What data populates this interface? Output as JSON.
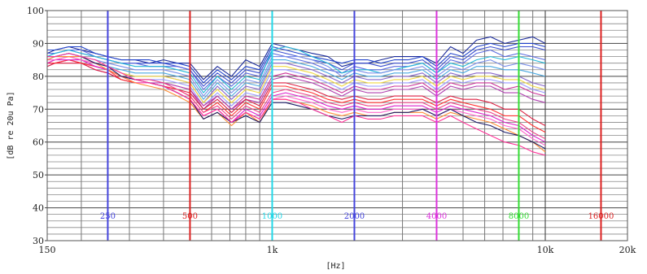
{
  "chart_data": {
    "type": "line",
    "title": "",
    "xlabel": "[Hz]",
    "ylabel": "[dB re 20u Pa]",
    "x_scale": "log",
    "xlim": [
      150,
      20000
    ],
    "ylim": [
      30,
      100
    ],
    "grid": true,
    "x_tick_labels": [
      {
        "value": 150,
        "label": "150"
      },
      {
        "value": 1000,
        "label": "1k"
      },
      {
        "value": 10000,
        "label": "10k"
      },
      {
        "value": 20000,
        "label": "20k"
      }
    ],
    "y_ticks": [
      30,
      40,
      50,
      60,
      70,
      80,
      90,
      100
    ],
    "markers": [
      {
        "freq": 250,
        "label": "250",
        "color": "#4444dd"
      },
      {
        "freq": 500,
        "label": "500",
        "color": "#dd2222"
      },
      {
        "freq": 1000,
        "label": "1000",
        "color": "#22d8e8"
      },
      {
        "freq": 2000,
        "label": "2000",
        "color": "#4444dd"
      },
      {
        "freq": 4000,
        "label": "4000",
        "color": "#dd33dd"
      },
      {
        "freq": 8000,
        "label": "8000",
        "color": "#33dd33"
      },
      {
        "freq": 16000,
        "label": "16000",
        "color": "#dd2222"
      }
    ],
    "x": [
      150,
      160,
      180,
      200,
      225,
      250,
      280,
      315,
      355,
      400,
      450,
      500,
      560,
      630,
      710,
      800,
      900,
      1000,
      1120,
      1250,
      1400,
      1600,
      1800,
      2000,
      2240,
      2500,
      2800,
      3150,
      3550,
      4000,
      4500,
      5000,
      5600,
      6300,
      7100,
      8000,
      9000,
      10000
    ],
    "series": [
      {
        "color": "#1a2a9a",
        "values": [
          87,
          88,
          89,
          88,
          87,
          86,
          85,
          85,
          84,
          85,
          84,
          84,
          79,
          83,
          80,
          85,
          83,
          90,
          89,
          88,
          87,
          86,
          83,
          84,
          84,
          85,
          86,
          86,
          86,
          84,
          89,
          87,
          91,
          92,
          90,
          91,
          92,
          90
        ]
      },
      {
        "color": "#2244cc",
        "values": [
          88,
          88,
          89,
          89,
          87,
          86,
          85,
          85,
          85,
          84,
          84,
          83,
          78,
          82,
          79,
          83,
          82,
          89,
          88,
          87,
          86,
          85,
          84,
          85,
          85,
          84,
          85,
          85,
          86,
          83,
          87,
          86,
          89,
          90,
          89,
          90,
          90,
          89
        ]
      },
      {
        "color": "#3a4fd0",
        "values": [
          86,
          87,
          88,
          87,
          86,
          85,
          84,
          84,
          84,
          84,
          83,
          82,
          77,
          81,
          78,
          82,
          81,
          88,
          87,
          86,
          85,
          84,
          82,
          84,
          84,
          83,
          84,
          84,
          85,
          82,
          86,
          85,
          88,
          89,
          88,
          89,
          89,
          88
        ]
      },
      {
        "color": "#5b6be0",
        "values": [
          87,
          87,
          88,
          88,
          86,
          85,
          84,
          84,
          83,
          83,
          83,
          82,
          76,
          80,
          77,
          81,
          80,
          87,
          86,
          85,
          84,
          82,
          81,
          83,
          82,
          82,
          83,
          83,
          84,
          81,
          85,
          84,
          87,
          88,
          86,
          87,
          86,
          85
        ]
      },
      {
        "color": "#22b8d8",
        "values": [
          86,
          87,
          88,
          87,
          86,
          85,
          84,
          83,
          83,
          83,
          82,
          81,
          75,
          80,
          76,
          80,
          79,
          88,
          89,
          88,
          86,
          84,
          81,
          82,
          82,
          81,
          82,
          83,
          84,
          81,
          84,
          83,
          85,
          86,
          85,
          86,
          85,
          84
        ]
      },
      {
        "color": "#7b8fe8",
        "values": [
          85,
          86,
          87,
          86,
          85,
          84,
          83,
          82,
          82,
          82,
          81,
          80,
          74,
          79,
          75,
          79,
          78,
          86,
          86,
          86,
          85,
          83,
          80,
          82,
          81,
          81,
          82,
          82,
          83,
          80,
          83,
          82,
          84,
          85,
          83,
          84,
          83,
          82
        ]
      },
      {
        "color": "#4aa8e0",
        "values": [
          85,
          86,
          86,
          86,
          84,
          83,
          82,
          81,
          81,
          81,
          80,
          79,
          73,
          78,
          74,
          78,
          77,
          85,
          85,
          84,
          83,
          81,
          79,
          81,
          80,
          80,
          81,
          81,
          82,
          79,
          82,
          81,
          83,
          83,
          82,
          82,
          81,
          80
        ]
      },
      {
        "color": "#8866cc",
        "values": [
          84,
          85,
          86,
          85,
          84,
          83,
          81,
          80,
          80,
          80,
          79,
          78,
          72,
          77,
          73,
          77,
          76,
          84,
          84,
          83,
          82,
          80,
          78,
          80,
          79,
          79,
          80,
          80,
          81,
          78,
          81,
          80,
          81,
          81,
          80,
          80,
          78,
          77
        ]
      },
      {
        "color": "#f0d840",
        "values": [
          84,
          85,
          86,
          85,
          84,
          83,
          81,
          80,
          80,
          80,
          79,
          78,
          72,
          76,
          72,
          76,
          75,
          83,
          83,
          82,
          81,
          79,
          77,
          79,
          78,
          78,
          79,
          79,
          80,
          77,
          80,
          79,
          80,
          80,
          79,
          79,
          77,
          76
        ]
      },
      {
        "color": "#9999ff",
        "values": [
          84,
          84,
          85,
          85,
          83,
          82,
          80,
          79,
          79,
          79,
          78,
          77,
          71,
          75,
          71,
          75,
          74,
          82,
          82,
          81,
          80,
          78,
          76,
          78,
          77,
          77,
          78,
          78,
          79,
          76,
          79,
          78,
          79,
          79,
          78,
          78,
          76,
          75
        ]
      },
      {
        "color": "#cc3399",
        "values": [
          84,
          84,
          85,
          84,
          83,
          82,
          80,
          79,
          79,
          78,
          77,
          76,
          71,
          74,
          70,
          74,
          73,
          80,
          81,
          80,
          79,
          77,
          75,
          77,
          76,
          76,
          77,
          77,
          78,
          75,
          78,
          77,
          78,
          78,
          76,
          77,
          75,
          74
        ]
      },
      {
        "color": "#b040b0",
        "values": [
          83,
          84,
          85,
          84,
          82,
          81,
          79,
          78,
          78,
          78,
          77,
          76,
          70,
          74,
          70,
          73,
          72,
          79,
          80,
          79,
          78,
          76,
          74,
          76,
          75,
          75,
          76,
          76,
          77,
          74,
          77,
          76,
          77,
          77,
          75,
          75,
          73,
          72
        ]
      },
      {
        "color": "#dd2244",
        "values": [
          83,
          84,
          84,
          84,
          82,
          81,
          79,
          78,
          78,
          77,
          76,
          75,
          70,
          73,
          69,
          73,
          71,
          78,
          78,
          77,
          76,
          74,
          73,
          74,
          73,
          73,
          74,
          74,
          74,
          72,
          74,
          73,
          73,
          72,
          70,
          70,
          67,
          65
        ]
      },
      {
        "color": "#ff3333",
        "values": [
          84,
          84,
          85,
          84,
          83,
          82,
          79,
          78,
          78,
          77,
          76,
          74,
          69,
          72,
          68,
          72,
          70,
          77,
          77,
          76,
          75,
          73,
          72,
          73,
          72,
          72,
          73,
          73,
          73,
          71,
          73,
          72,
          71,
          70,
          68,
          68,
          65,
          63
        ]
      },
      {
        "color": "#ee4488",
        "values": [
          85,
          85,
          86,
          85,
          83,
          82,
          80,
          79,
          79,
          78,
          76,
          74,
          69,
          71,
          67,
          71,
          69,
          75,
          76,
          75,
          74,
          72,
          71,
          72,
          71,
          71,
          72,
          72,
          72,
          70,
          72,
          71,
          70,
          69,
          67,
          66,
          63,
          61
        ]
      },
      {
        "color": "#dd22cc",
        "values": [
          84,
          85,
          85,
          85,
          83,
          82,
          80,
          78,
          78,
          77,
          75,
          73,
          68,
          70,
          66,
          70,
          68,
          74,
          75,
          74,
          73,
          71,
          70,
          71,
          70,
          70,
          71,
          71,
          71,
          69,
          71,
          70,
          69,
          68,
          66,
          65,
          62,
          60
        ]
      },
      {
        "color": "#ff66cc",
        "values": [
          85,
          85,
          86,
          85,
          84,
          82,
          80,
          78,
          78,
          77,
          75,
          73,
          68,
          70,
          66,
          69,
          67,
          73,
          74,
          73,
          72,
          70,
          69,
          70,
          69,
          69,
          70,
          70,
          70,
          68,
          70,
          69,
          68,
          67,
          65,
          64,
          61,
          59
        ]
      },
      {
        "color": "#ff8c33",
        "values": [
          85,
          86,
          86,
          86,
          84,
          82,
          80,
          78,
          77,
          76,
          74,
          72,
          67,
          69,
          65,
          69,
          66,
          73,
          73,
          72,
          71,
          69,
          68,
          69,
          68,
          68,
          69,
          69,
          69,
          67,
          69,
          68,
          67,
          66,
          64,
          62,
          60,
          57
        ]
      },
      {
        "color": "#1a1a66",
        "values": [
          86,
          86,
          87,
          86,
          84,
          83,
          80,
          79,
          78,
          77,
          75,
          73,
          67,
          69,
          66,
          68,
          66,
          72,
          72,
          71,
          70,
          68,
          67,
          68,
          68,
          68,
          69,
          69,
          70,
          68,
          70,
          68,
          66,
          65,
          63,
          62,
          60,
          58
        ]
      },
      {
        "color": "#ff3399",
        "values": [
          86,
          86,
          87,
          86,
          85,
          83,
          81,
          79,
          78,
          77,
          75,
          73,
          68,
          70,
          66,
          69,
          67,
          73,
          73,
          72,
          70,
          68,
          66,
          68,
          67,
          67,
          68,
          68,
          68,
          66,
          68,
          66,
          64,
          62,
          60,
          59,
          57,
          56
        ]
      }
    ]
  }
}
